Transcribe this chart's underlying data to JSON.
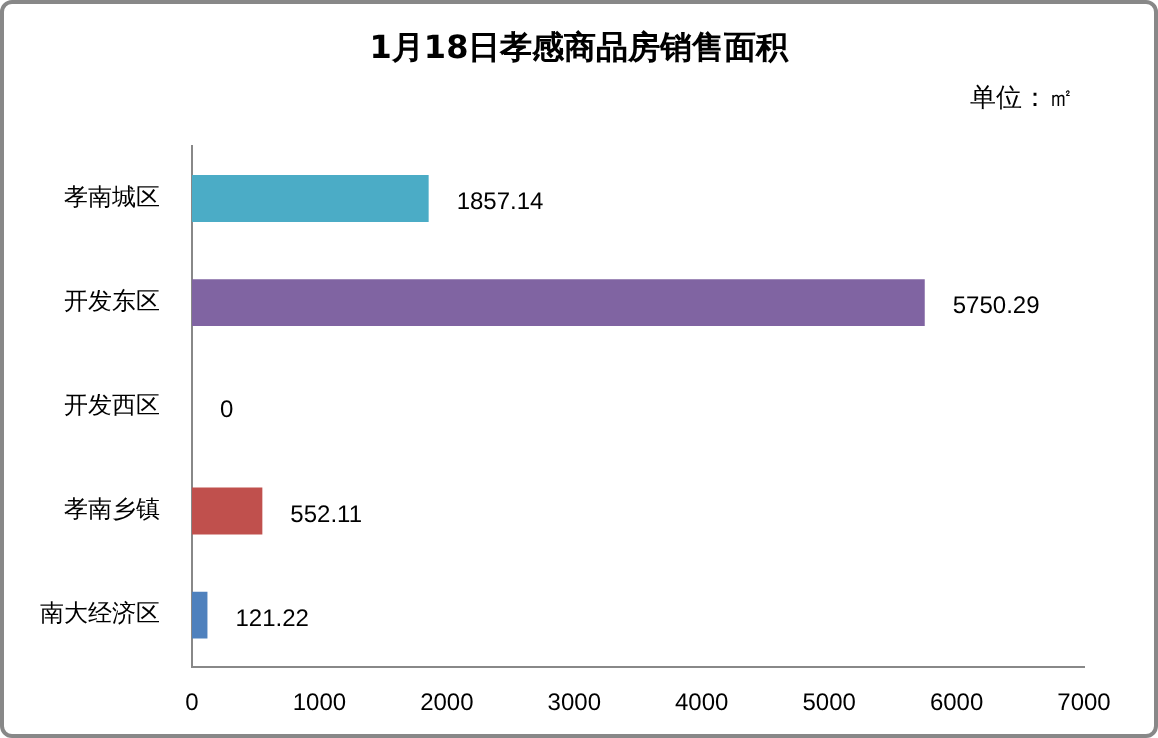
{
  "chart_data": {
    "type": "bar",
    "orientation": "horizontal",
    "title": "1月18日孝感商品房销售面积",
    "annotations": [
      "单位：㎡"
    ],
    "categories": [
      "孝南城区",
      "开发东区",
      "开发西区",
      "孝南乡镇",
      "南大经济区"
    ],
    "values": [
      1857.14,
      5750.29,
      0,
      552.11,
      121.22
    ],
    "colors": [
      "#4bacc6",
      "#8064a2",
      "#9bbb59",
      "#c0504d",
      "#4f81bd"
    ],
    "xlim": [
      0,
      7000
    ],
    "xticks": [
      0,
      1000,
      2000,
      3000,
      4000,
      5000,
      6000,
      7000
    ],
    "data_labels": true,
    "grid": false,
    "legend": false
  }
}
